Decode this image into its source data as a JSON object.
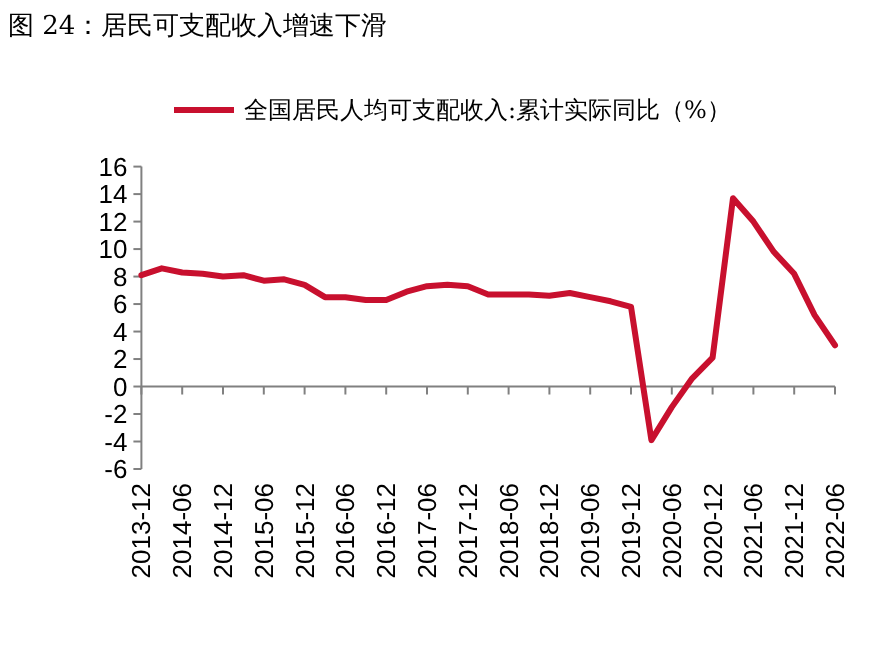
{
  "chart_data": {
    "type": "line",
    "title": "图 24：居民可支配收入增速下滑",
    "categories": [
      "2013-12",
      null,
      "2014-06",
      null,
      "2014-12",
      null,
      "2015-06",
      null,
      "2015-12",
      null,
      "2016-06",
      null,
      "2016-12",
      null,
      "2017-06",
      null,
      "2017-12",
      null,
      "2018-06",
      null,
      "2018-12",
      null,
      "2019-06",
      null,
      "2019-12",
      null,
      "2020-06",
      null,
      "2020-12",
      null,
      "2021-06",
      null,
      "2021-12",
      null,
      "2022-06"
    ],
    "series": [
      {
        "name": "全国居民人均可支配收入:累计实际同比（%）",
        "color": "#c8102e",
        "values": [
          8.1,
          8.6,
          8.3,
          8.2,
          8.0,
          8.1,
          7.7,
          7.8,
          7.4,
          6.5,
          6.5,
          6.3,
          6.3,
          6.9,
          7.3,
          7.4,
          7.3,
          6.7,
          6.7,
          6.7,
          6.6,
          6.8,
          6.5,
          6.2,
          5.8,
          -3.9,
          -1.5,
          0.6,
          2.1,
          13.7,
          12.0,
          9.8,
          8.2,
          5.2,
          3.0
        ]
      }
    ],
    "ylim": [
      -6,
      16
    ],
    "yticks": [
      -6,
      -4,
      -2,
      0,
      2,
      4,
      6,
      8,
      10,
      12,
      14,
      16
    ],
    "legend": "top",
    "line_style": "solid",
    "marker": "none"
  }
}
